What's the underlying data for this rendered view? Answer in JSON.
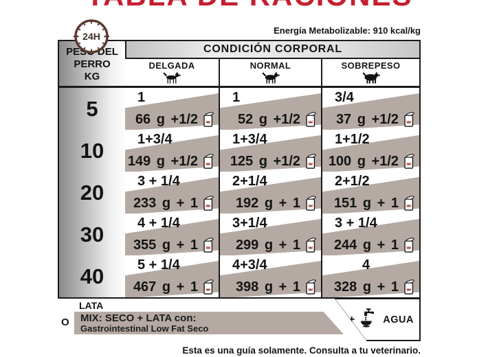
{
  "title": "TABLA DE RACIONES",
  "clock_label": "24H",
  "energy_note": "Energía Metabolizable: 910 kcal/kg",
  "colors": {
    "accent_red": "#c51f30",
    "band_taupe": "#b5aaa3",
    "clock_brown": "#5c3a33",
    "border_black": "#1a1a1a"
  },
  "table": {
    "weight_header_lines": [
      "PESO DEL",
      "PERRO",
      "KG"
    ],
    "condition_header": "CONDICIÓN CORPORAL",
    "conditions": [
      "DELGADA",
      "NORMAL",
      "SOBREPESO"
    ],
    "condition_icons": [
      "dog-thin-icon",
      "dog-normal-icon",
      "dog-overweight-icon"
    ],
    "rows": [
      {
        "weight": "5",
        "cells": [
          {
            "lata": "1",
            "mix": "66 g +1/2"
          },
          {
            "lata": "1",
            "mix": "52 g +1/2"
          },
          {
            "lata": "3/4",
            "mix": "37 g +1/2"
          }
        ]
      },
      {
        "weight": "10",
        "cells": [
          {
            "lata": "1+3/4",
            "mix": "149 g +1/2"
          },
          {
            "lata": "1+3/4",
            "mix": "125 g +1/2"
          },
          {
            "lata": "1+1/2",
            "mix": "100 g +1/2"
          }
        ]
      },
      {
        "weight": "20",
        "cells": [
          {
            "lata": "3 + 1/4",
            "mix": "233 g + 1"
          },
          {
            "lata": "2+1/4",
            "mix": "192 g + 1"
          },
          {
            "lata": "2+1/2",
            "mix": "151 g + 1"
          }
        ]
      },
      {
        "weight": "30",
        "cells": [
          {
            "lata": "4 + 1/4",
            "mix": "355 g + 1"
          },
          {
            "lata": "3+1/4",
            "mix": "299 g + 1"
          },
          {
            "lata": "3 + 1/4",
            "mix": "244 g + 1"
          }
        ]
      },
      {
        "weight": "40",
        "cells": [
          {
            "lata": "5 + 1/4",
            "mix": "467 g + 1"
          },
          {
            "lata": "4+3/4",
            "mix": "398 g + 1"
          },
          {
            "lata": "4",
            "mix": "328 g + 1"
          }
        ]
      }
    ]
  },
  "legend": {
    "lata_label": "LATA",
    "or_label": "O",
    "mix_line1": "MIX: SECO + LATA con:",
    "mix_line2": "Gastrointestinal Low Fat Seco",
    "plus": "+",
    "agua_label": "AGUA"
  },
  "footer_note": "Esta es una guía solamente. Consulta a tu veterinario."
}
